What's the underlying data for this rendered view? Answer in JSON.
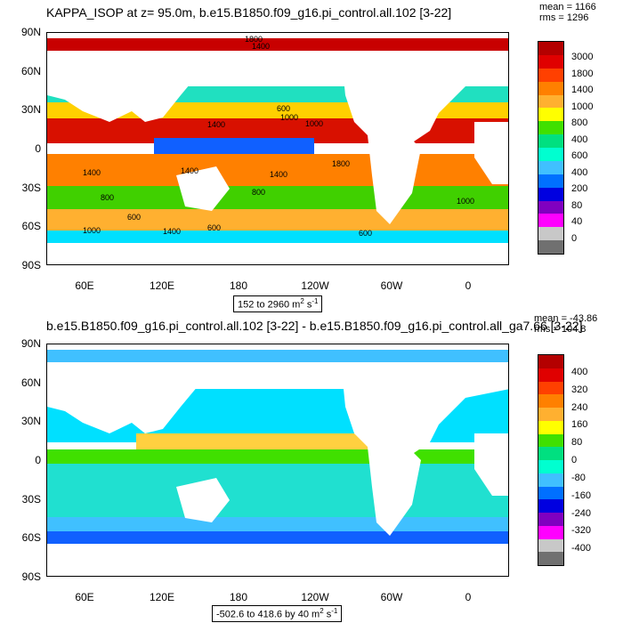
{
  "panel_top": {
    "title": "KAPPA_ISOP at z=  95.0m, b.e15.B1850.f09_g16.pi_control.all.102 [3-22]",
    "mean": "mean = 1166",
    "rms": "rms = 1296",
    "range": "152 to 2960 m",
    "range_sup": "2",
    "range_unit_tail": " s",
    "range_sup2": "-1",
    "contour_labels": [
      "1800",
      "1400",
      "600",
      "1000",
      "1400",
      "1000",
      "1400",
      "1400",
      "1800",
      "1400",
      "800",
      "1000",
      "800",
      "600",
      "1000",
      "600",
      "600",
      "1400"
    ],
    "colorbar_labels": [
      "3000",
      "1800",
      "1400",
      "1000",
      "800",
      "400",
      "600",
      "400",
      "200",
      "80",
      "40",
      "0"
    ],
    "colorbar_colors": [
      "#b40000",
      "#e00000",
      "#ff4000",
      "#ff8000",
      "#ffb030",
      "#ffff00",
      "#40e000",
      "#00e080",
      "#00ffd0",
      "#40c0ff",
      "#0070ff",
      "#0000e0",
      "#8000c0",
      "#ff00ff",
      "#c8c8c8",
      "#707070"
    ]
  },
  "panel_bottom": {
    "title": "b.e15.B1850.f09_g16.pi_control.all.102 [3-22] - b.e15.B1850.f09_g16.pi_control.all_ga7.66 [3-22]",
    "mean": "mean = -43.86",
    "rms": "rms = 104.8",
    "range": "-502.6 to 418.6 by 40 m",
    "range_sup": "2",
    "range_unit_tail": " s",
    "range_sup2": "-1",
    "colorbar_labels": [
      "400",
      "320",
      "240",
      "160",
      "80",
      "0",
      "-80",
      "-160",
      "-240",
      "-320",
      "-400"
    ],
    "colorbar_colors": [
      "#b40000",
      "#e00000",
      "#ff4000",
      "#ff8000",
      "#ffb030",
      "#ffff00",
      "#40e000",
      "#00e080",
      "#00ffd0",
      "#40c0ff",
      "#0070ff",
      "#0000e0",
      "#8000c0",
      "#ff00ff",
      "#c8c8c8",
      "#707070"
    ]
  },
  "axes": {
    "lat_labels": [
      "90N",
      "60N",
      "30N",
      "0",
      "30S",
      "60S",
      "90S"
    ],
    "lon_labels": [
      "60E",
      "120E",
      "180",
      "120W",
      "60W",
      "0"
    ]
  },
  "colors": {
    "land": "#ffffff",
    "frame": "#000000"
  }
}
